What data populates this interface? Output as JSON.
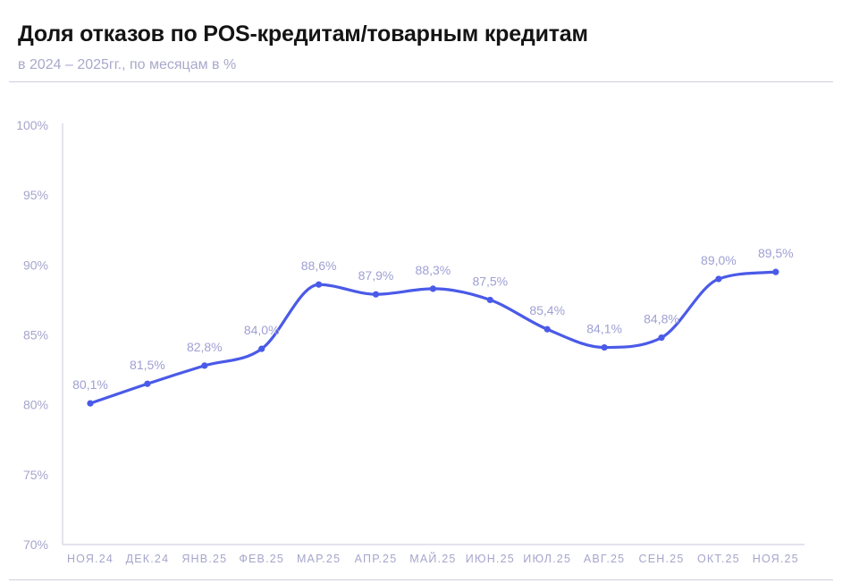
{
  "chart_data": {
    "type": "line",
    "title": "Доля отказов по POS-кредитам/товарным кредитам",
    "subtitle": "в 2024 – 2025гг., по месяцам в %",
    "categories": [
      "НОЯ.24",
      "ДЕК.24",
      "ЯНВ.25",
      "ФЕВ.25",
      "МАР.25",
      "АПР.25",
      "МАЙ.25",
      "ИЮН.25",
      "ИЮЛ.25",
      "АВГ.25",
      "СЕН.25",
      "ОКТ.25",
      "НОЯ.25"
    ],
    "series": [
      {
        "values": [
          80.1,
          81.5,
          82.8,
          84.0,
          88.6,
          87.9,
          88.3,
          87.5,
          85.4,
          84.1,
          84.8,
          89.0,
          89.5
        ],
        "labels": [
          "80,1%",
          "81,5%",
          "82,8%",
          "84,0%",
          "88,6%",
          "87,9%",
          "88,3%",
          "87,5%",
          "85,4%",
          "84,1%",
          "84,8%",
          "89,0%",
          "89,5%"
        ]
      }
    ],
    "ylim": [
      70,
      100
    ],
    "yticks": [
      70,
      75,
      80,
      85,
      90,
      95,
      100
    ],
    "ytick_labels": [
      "70%",
      "75%",
      "80%",
      "85%",
      "90%",
      "95%",
      "100%"
    ],
    "grid": false,
    "colors": {
      "line": "#4a5ae8",
      "text": "#a5a5cc",
      "label": "#9fa0d3"
    }
  }
}
